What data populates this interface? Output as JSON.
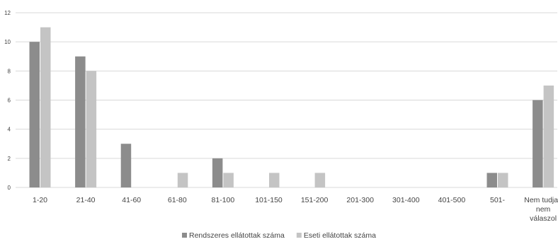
{
  "chart_data": {
    "type": "bar",
    "categories": [
      [
        "1-20"
      ],
      [
        "21-40"
      ],
      [
        "41-60"
      ],
      [
        "61-80"
      ],
      [
        "81-100"
      ],
      [
        "101-150"
      ],
      [
        "151-200"
      ],
      [
        "201-300"
      ],
      [
        "301-400"
      ],
      [
        "401-500"
      ],
      [
        "501-"
      ],
      [
        "Nem tudja /",
        "nem",
        "válaszol"
      ]
    ],
    "series": [
      {
        "name": "Rendszeres ellátottak száma",
        "color": "#8c8c8c",
        "values": [
          10,
          9,
          3,
          0,
          2,
          0,
          0,
          0,
          0,
          0,
          1,
          6
        ]
      },
      {
        "name": "Eseti ellátottak száma",
        "color": "#c4c4c4",
        "values": [
          11,
          8,
          0,
          1,
          1,
          1,
          1,
          0,
          0,
          0,
          1,
          7
        ]
      }
    ],
    "y_ticks": [
      0,
      2,
      4,
      6,
      8,
      10,
      12
    ],
    "ylim": [
      0,
      12
    ],
    "grid": true,
    "legend_position": "bottom-center",
    "title": "",
    "xlabel": "",
    "ylabel": ""
  }
}
